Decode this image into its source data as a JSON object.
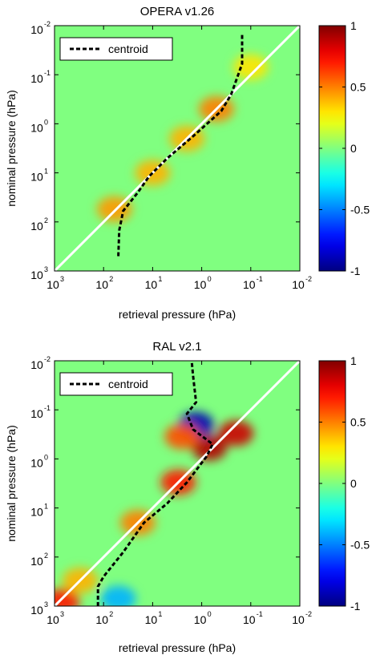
{
  "chart_data": [
    {
      "type": "heatmap",
      "title": "OPERA v1.26",
      "xlabel": "retrieval pressure (hPa)",
      "ylabel": "nominal pressure (hPa)",
      "x_scale": "log-reversed",
      "y_scale": "log-reversed",
      "xlim": [
        1000,
        0.01
      ],
      "ylim": [
        1000,
        0.01
      ],
      "x_ticks": [
        {
          "base": "10",
          "exp": "3"
        },
        {
          "base": "10",
          "exp": "2"
        },
        {
          "base": "10",
          "exp": "1"
        },
        {
          "base": "10",
          "exp": "0"
        },
        {
          "base": "10",
          "exp": "-1"
        },
        {
          "base": "10",
          "exp": "-2"
        }
      ],
      "y_ticks": [
        {
          "base": "10",
          "exp": "-2"
        },
        {
          "base": "10",
          "exp": "-1"
        },
        {
          "base": "10",
          "exp": "0"
        },
        {
          "base": "10",
          "exp": "1"
        },
        {
          "base": "10",
          "exp": "2"
        },
        {
          "base": "10",
          "exp": "3"
        }
      ],
      "colorbar": {
        "min": -1,
        "max": 1,
        "ticks": [
          "1",
          "0.5",
          "0",
          "-0.5",
          "-1"
        ],
        "tick_values": [
          1,
          0.5,
          0,
          -0.5,
          -1
        ]
      },
      "legend": {
        "label": "centroid",
        "placement": "top-left"
      },
      "series": [
        {
          "name": "centroid",
          "style": "dashed",
          "color": "#000000",
          "points": [
            [
              50,
              500
            ],
            [
              48,
              150
            ],
            [
              40,
              60
            ],
            [
              20,
              25
            ],
            [
              12,
              12
            ],
            [
              5,
              5
            ],
            [
              1.5,
              1.8
            ],
            [
              0.4,
              0.55
            ],
            [
              0.25,
              0.25
            ],
            [
              0.15,
              0.06
            ],
            [
              0.15,
              0.015
            ]
          ]
        }
      ],
      "identity_line": {
        "color": "#ffffff"
      },
      "features": [
        {
          "x": 60,
          "y": 55,
          "value": 0.45
        },
        {
          "x": 10,
          "y": 10,
          "value": 0.4
        },
        {
          "x": 2,
          "y": 2,
          "value": 0.4
        },
        {
          "x": 0.5,
          "y": 0.5,
          "value": 0.5
        },
        {
          "x": 0.1,
          "y": 0.07,
          "value": 0.3
        }
      ]
    },
    {
      "type": "heatmap",
      "title": "RAL v2.1",
      "xlabel": "retrieval pressure (hPa)",
      "ylabel": "nominal pressure (hPa)",
      "x_scale": "log-reversed",
      "y_scale": "log-reversed",
      "xlim": [
        1000,
        0.01
      ],
      "ylim": [
        1000,
        0.01
      ],
      "x_ticks": [
        {
          "base": "10",
          "exp": "3"
        },
        {
          "base": "10",
          "exp": "2"
        },
        {
          "base": "10",
          "exp": "1"
        },
        {
          "base": "10",
          "exp": "0"
        },
        {
          "base": "10",
          "exp": "-1"
        },
        {
          "base": "10",
          "exp": "-2"
        }
      ],
      "y_ticks": [
        {
          "base": "10",
          "exp": "-2"
        },
        {
          "base": "10",
          "exp": "-1"
        },
        {
          "base": "10",
          "exp": "0"
        },
        {
          "base": "10",
          "exp": "1"
        },
        {
          "base": "10",
          "exp": "2"
        },
        {
          "base": "10",
          "exp": "3"
        }
      ],
      "colorbar": {
        "min": -1,
        "max": 1,
        "ticks": [
          "1",
          "0.5",
          "0",
          "-0.5",
          "-1"
        ],
        "tick_values": [
          1,
          0.5,
          0,
          -0.5,
          -1
        ]
      },
      "legend": {
        "label": "centroid",
        "placement": "top-left"
      },
      "series": [
        {
          "name": "centroid",
          "style": "dashed",
          "color": "#000000",
          "points": [
            [
              130,
              1000
            ],
            [
              130,
              400
            ],
            [
              100,
              250
            ],
            [
              40,
              80
            ],
            [
              15,
              20
            ],
            [
              5,
              8
            ],
            [
              2,
              3
            ],
            [
              0.8,
              0.9
            ],
            [
              0.6,
              0.5
            ],
            [
              1.5,
              0.25
            ],
            [
              2,
              0.12
            ],
            [
              1.3,
              0.07
            ],
            [
              1.5,
              0.02
            ],
            [
              1.6,
              0.01
            ]
          ]
        }
      ],
      "identity_line": {
        "color": "#ffffff"
      },
      "features": [
        {
          "x": 700,
          "y": 800,
          "value": 0.7
        },
        {
          "x": 300,
          "y": 300,
          "value": 0.4
        },
        {
          "x": 20,
          "y": 20,
          "value": 0.5
        },
        {
          "x": 3,
          "y": 3,
          "value": 0.7
        },
        {
          "x": 0.7,
          "y": 0.6,
          "value": 0.9
        },
        {
          "x": 0.2,
          "y": 0.3,
          "value": 0.85
        },
        {
          "x": 1.3,
          "y": 0.2,
          "value": -0.9
        },
        {
          "x": 2.5,
          "y": 0.35,
          "value": 0.6
        },
        {
          "x": 50,
          "y": 700,
          "value": -0.4
        }
      ]
    }
  ]
}
